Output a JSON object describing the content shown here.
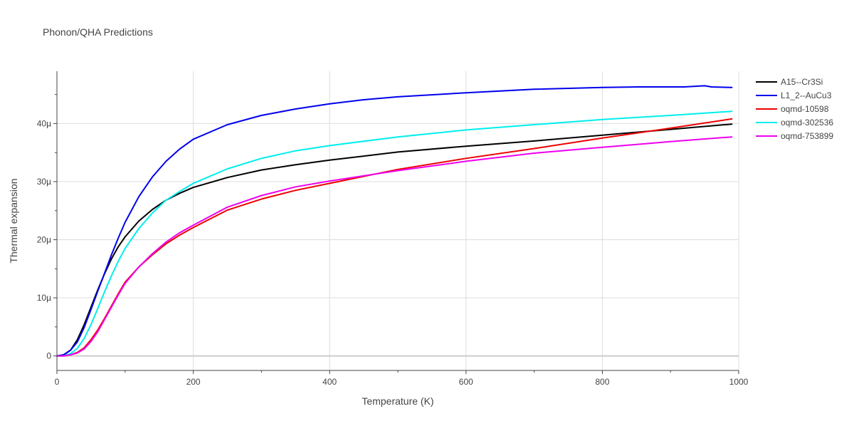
{
  "chart_data": {
    "type": "line",
    "title": "Phonon/QHA Predictions",
    "xlabel": "Temperature (K)",
    "ylabel": "Thermal expansion",
    "xlim": [
      0,
      1000
    ],
    "ylim": [
      -2.5e-06,
      4.9e-05
    ],
    "xticks": [
      0,
      200,
      400,
      600,
      800,
      1000
    ],
    "xtick_labels": [
      "0",
      "200",
      "400",
      "600",
      "800",
      "1000"
    ],
    "yticks": [
      0,
      1e-05,
      2e-05,
      3e-05,
      4e-05
    ],
    "ytick_labels": [
      "0",
      "10µ",
      "20µ",
      "30µ",
      "40µ"
    ],
    "grid": true,
    "legend_position": "top-right",
    "series": [
      {
        "name": "A15--Cr3Si",
        "color": "#000000",
        "x": [
          0,
          10,
          20,
          30,
          40,
          50,
          60,
          70,
          80,
          90,
          100,
          120,
          140,
          160,
          180,
          200,
          250,
          300,
          350,
          400,
          500,
          600,
          700,
          800,
          900,
          990
        ],
        "y": [
          0,
          2e-07,
          1e-06,
          2.8e-06,
          5.4e-06,
          8.4e-06,
          1.14e-05,
          1.42e-05,
          1.67e-05,
          1.88e-05,
          2.05e-05,
          2.32e-05,
          2.52e-05,
          2.68e-05,
          2.8e-05,
          2.9e-05,
          3.07e-05,
          3.2e-05,
          3.29e-05,
          3.37e-05,
          3.51e-05,
          3.61e-05,
          3.7e-05,
          3.8e-05,
          3.9e-05,
          3.99e-05
        ]
      },
      {
        "name": "L1_2--AuCu3",
        "color": "#0000ee",
        "x": [
          0,
          10,
          20,
          30,
          40,
          50,
          60,
          70,
          80,
          90,
          100,
          120,
          140,
          160,
          180,
          200,
          250,
          300,
          350,
          400,
          450,
          500,
          600,
          700,
          800,
          850,
          900,
          920,
          950,
          960,
          990
        ],
        "y": [
          0,
          2e-07,
          1e-06,
          2.4e-06,
          4.9e-06,
          8e-06,
          1.12e-05,
          1.43e-05,
          1.74e-05,
          2.03e-05,
          2.3e-05,
          2.74e-05,
          3.08e-05,
          3.35e-05,
          3.56e-05,
          3.73e-05,
          3.98e-05,
          4.14e-05,
          4.25e-05,
          4.34e-05,
          4.41e-05,
          4.46e-05,
          4.53e-05,
          4.59e-05,
          4.62e-05,
          4.63e-05,
          4.63e-05,
          4.63e-05,
          4.65e-05,
          4.63e-05,
          4.62e-05
        ]
      },
      {
        "name": "oqmd-10598",
        "color": "#ee0000",
        "x": [
          0,
          10,
          20,
          30,
          40,
          50,
          60,
          70,
          80,
          90,
          100,
          120,
          140,
          160,
          180,
          200,
          250,
          300,
          350,
          400,
          500,
          600,
          700,
          800,
          900,
          990
        ],
        "y": [
          0,
          0,
          2e-07,
          6e-07,
          1.4e-06,
          2.8e-06,
          4.5e-06,
          6.5e-06,
          8.6e-06,
          1.07e-05,
          1.27e-05,
          1.53e-05,
          1.74e-05,
          1.93e-05,
          2.08e-05,
          2.21e-05,
          2.51e-05,
          2.7e-05,
          2.85e-05,
          2.97e-05,
          3.21e-05,
          3.4e-05,
          3.57e-05,
          3.75e-05,
          3.92e-05,
          4.08e-05
        ]
      },
      {
        "name": "oqmd-302536",
        "color": "#00eeee",
        "x": [
          0,
          10,
          20,
          30,
          40,
          50,
          60,
          70,
          80,
          90,
          100,
          120,
          140,
          160,
          180,
          200,
          250,
          300,
          350,
          400,
          500,
          600,
          700,
          800,
          900,
          990
        ],
        "y": [
          0,
          0,
          4e-07,
          1.3e-06,
          3e-06,
          5.4e-06,
          8.2e-06,
          1.11e-05,
          1.38e-05,
          1.63e-05,
          1.85e-05,
          2.19e-05,
          2.46e-05,
          2.68e-05,
          2.83e-05,
          2.97e-05,
          3.22e-05,
          3.4e-05,
          3.53e-05,
          3.62e-05,
          3.77e-05,
          3.89e-05,
          3.98e-05,
          4.07e-05,
          4.14e-05,
          4.21e-05
        ]
      },
      {
        "name": "oqmd-753899",
        "color": "#ee00ee",
        "x": [
          0,
          10,
          20,
          30,
          40,
          50,
          60,
          70,
          80,
          90,
          100,
          120,
          140,
          160,
          180,
          200,
          250,
          300,
          350,
          400,
          500,
          600,
          700,
          800,
          900,
          990
        ],
        "y": [
          0,
          0,
          2e-07,
          5e-07,
          1.2e-06,
          2.5e-06,
          4.2e-06,
          6.3e-06,
          8.4e-06,
          1.05e-05,
          1.25e-05,
          1.53e-05,
          1.76e-05,
          1.96e-05,
          2.12e-05,
          2.25e-05,
          2.56e-05,
          2.76e-05,
          2.91e-05,
          3.01e-05,
          3.19e-05,
          3.35e-05,
          3.49e-05,
          3.59e-05,
          3.69e-05,
          3.77e-05
        ]
      }
    ]
  }
}
